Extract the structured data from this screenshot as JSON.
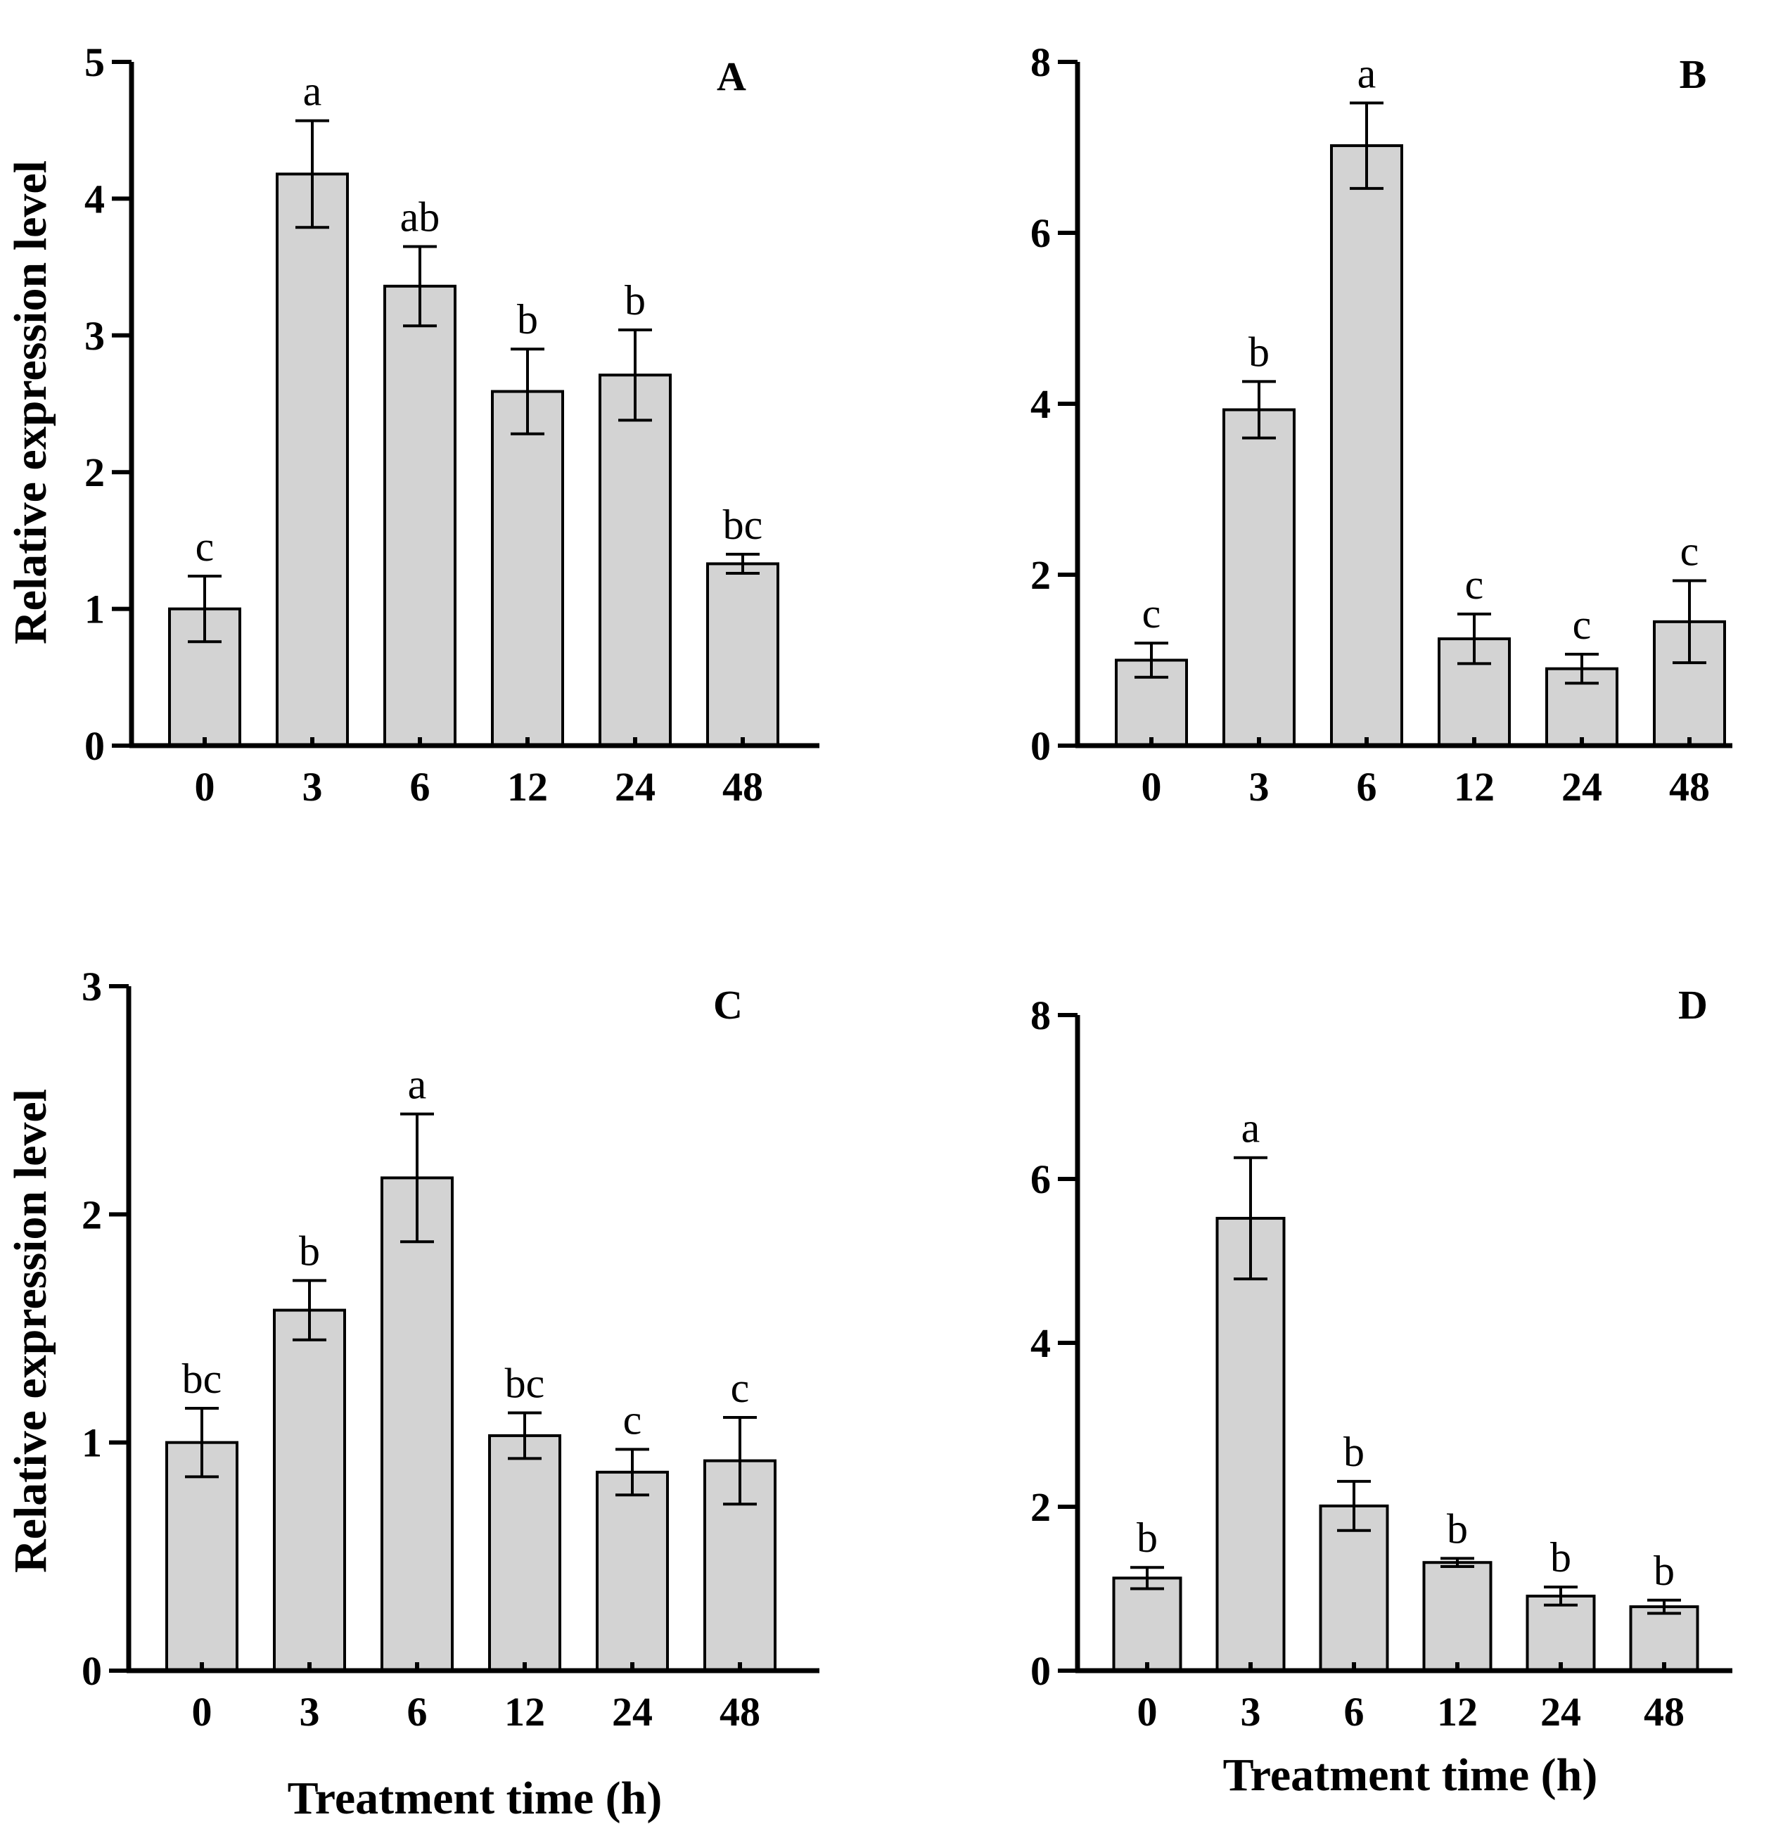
{
  "figure": {
    "shared_xlabel": "Treatment time (h)",
    "shared_ylabel": "Relative expression level"
  },
  "chart_data": [
    {
      "panel": "A",
      "type": "bar",
      "title": "A",
      "xlabel": "",
      "ylabel": "Relative expression level",
      "categories": [
        "0",
        "3",
        "6",
        "12",
        "24",
        "48"
      ],
      "values": [
        1.0,
        4.18,
        3.36,
        2.59,
        2.71,
        1.33
      ],
      "errors": [
        0.24,
        0.39,
        0.29,
        0.31,
        0.33,
        0.07
      ],
      "significance": [
        "c",
        "a",
        "ab",
        "b",
        "b",
        "bc"
      ],
      "ylim": [
        0,
        5
      ],
      "yticks": [
        "0",
        "1",
        "2",
        "3",
        "4",
        "5"
      ],
      "bar_color": "#d3d3d3"
    },
    {
      "panel": "B",
      "type": "bar",
      "title": "B",
      "xlabel": "",
      "ylabel": "",
      "categories": [
        "0",
        "3",
        "6",
        "12",
        "24",
        "48"
      ],
      "values": [
        1.0,
        3.93,
        7.02,
        1.25,
        0.9,
        1.45
      ],
      "errors": [
        0.2,
        0.33,
        0.5,
        0.29,
        0.17,
        0.48
      ],
      "significance": [
        "c",
        "b",
        "a",
        "c",
        "c",
        "c"
      ],
      "ylim": [
        0,
        8
      ],
      "yticks": [
        "0",
        "2",
        "4",
        "6",
        "8"
      ],
      "bar_color": "#d3d3d3"
    },
    {
      "panel": "C",
      "type": "bar",
      "title": "C",
      "xlabel": "Treatment time (h)",
      "ylabel": "Relative expression level",
      "categories": [
        "0",
        "3",
        "6",
        "12",
        "24",
        "48"
      ],
      "values": [
        1.0,
        1.58,
        2.16,
        1.03,
        0.87,
        0.92
      ],
      "errors": [
        0.15,
        0.13,
        0.28,
        0.1,
        0.1,
        0.19
      ],
      "significance": [
        "bc",
        "b",
        "a",
        "bc",
        "c",
        "c"
      ],
      "ylim": [
        0,
        3
      ],
      "yticks": [
        "0",
        "1",
        "2",
        "3"
      ],
      "bar_color": "#d3d3d3"
    },
    {
      "panel": "D",
      "type": "bar",
      "title": "D",
      "xlabel": "Treatment time (h)",
      "ylabel": "",
      "categories": [
        "0",
        "3",
        "6",
        "12",
        "24",
        "48"
      ],
      "values": [
        1.13,
        5.52,
        2.01,
        1.32,
        0.91,
        0.78
      ],
      "errors": [
        0.13,
        0.74,
        0.3,
        0.05,
        0.11,
        0.08
      ],
      "significance": [
        "b",
        "a",
        "b",
        "b",
        "b",
        "b"
      ],
      "ylim": [
        0,
        8
      ],
      "yticks": [
        "0",
        "2",
        "4",
        "6",
        "8"
      ],
      "bar_color": "#d3d3d3"
    }
  ]
}
